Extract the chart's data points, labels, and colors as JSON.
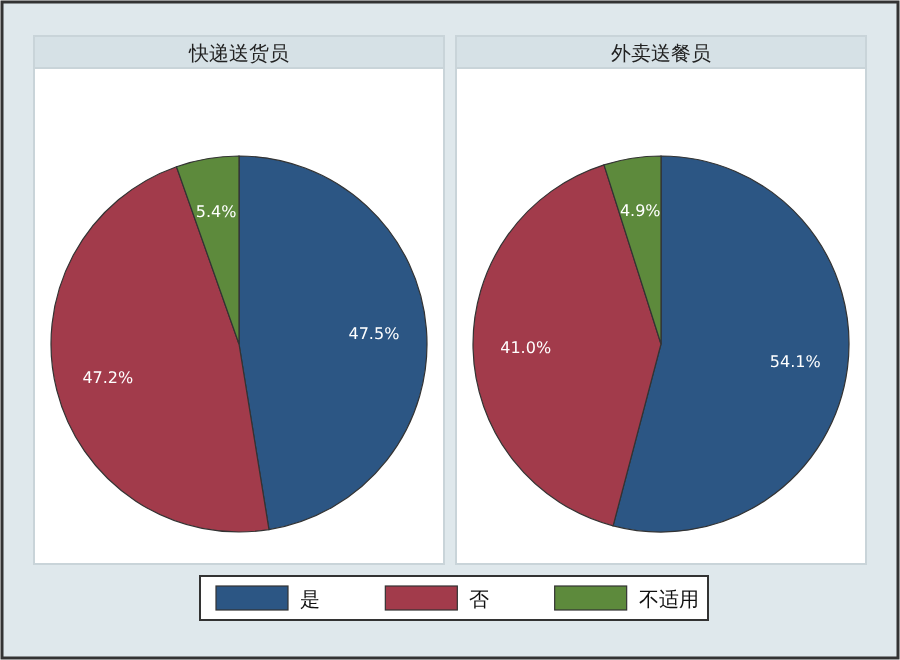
{
  "chart_data": [
    {
      "type": "pie",
      "title": "快递送货员",
      "categories": [
        "是",
        "否",
        "不适用"
      ],
      "values": [
        47.5,
        47.2,
        5.4
      ],
      "colors": [
        "#2c5684",
        "#a23b4b",
        "#5d8a3c"
      ],
      "value_labels": [
        "47.5%",
        "47.2%",
        "5.4%"
      ],
      "legend": "bottom"
    },
    {
      "type": "pie",
      "title": "外卖送餐员",
      "categories": [
        null,
        null,
        null
      ],
      "values": [
        54.1,
        41.0,
        4.9
      ],
      "colors": [
        "#2c5684",
        "#a23b4b",
        "#5d8a3c"
      ],
      "value_labels": [
        "54.1%",
        "41.0%",
        "4.9%"
      ]
    }
  ]
}
